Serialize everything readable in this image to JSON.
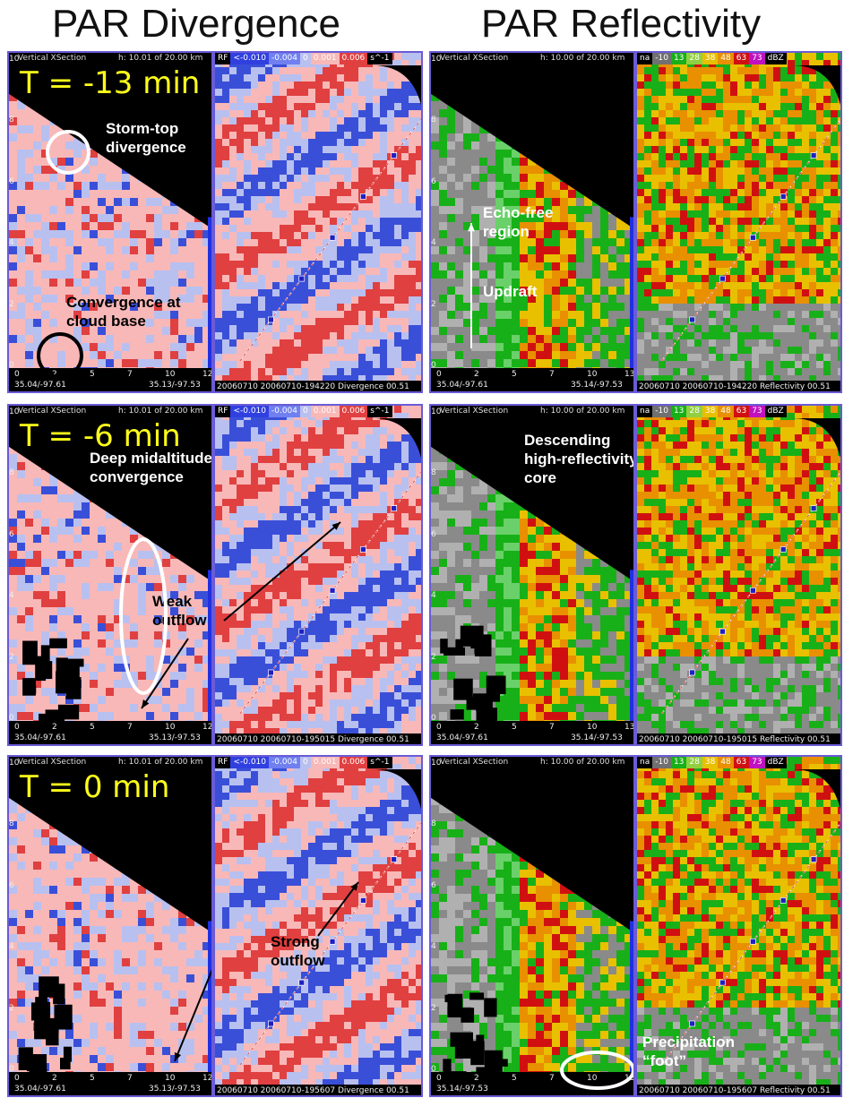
{
  "titles": {
    "divergence": "PAR Divergence",
    "reflectivity": "PAR Reflectivity"
  },
  "rows": [
    {
      "time_label": "T = -13 min",
      "div_xsec_header": {
        "left": "Vertical XSection",
        "right": "h: 10.01 of 20.00 km"
      },
      "refl_xsec_header": {
        "left": "Vertical XSection",
        "right": "h: 10.00 of 20.00 km"
      },
      "div_xsec_footer": {
        "left": "35.04/-97.61",
        "right": "35.13/-97.53"
      },
      "refl_xsec_footer": {
        "left": "35.04/-97.61",
        "right": "35.14/-97.53"
      },
      "div_ppi_footer": "20060710 20060710-194220 Divergence 00.51",
      "refl_ppi_footer": "20060710 20060710-194220 Reflectivity 00.51",
      "div_annotations": [
        "Storm-top divergence",
        "Convergence at cloud base"
      ],
      "refl_annotations": [
        "Echo-free region",
        "Updraft"
      ]
    },
    {
      "time_label": "T = -6 min",
      "div_xsec_header": {
        "left": "Vertical XSection",
        "right": "h: 10.01 of 20.00 km"
      },
      "refl_xsec_header": {
        "left": "Vertical XSection",
        "right": "h: 10.00 of 20.00 km"
      },
      "div_xsec_footer": {
        "left": "35.04/-97.61",
        "right": "35.13/-97.53"
      },
      "refl_xsec_footer": {
        "left": "35.04/-97.61",
        "right": "35.14/-97.53"
      },
      "div_ppi_footer": "20060710 20060710-195015 Divergence 00.51",
      "refl_ppi_footer": "20060710 20060710-195015 Reflectivity 00.51",
      "div_annotations": [
        "Deep midaltitude convergence",
        "Weak outflow"
      ],
      "refl_annotations": [
        "Descending high-reflectivity core"
      ]
    },
    {
      "time_label": "T = 0 min",
      "div_xsec_header": {
        "left": "Vertical XSection",
        "right": "h: 10.01 of 20.00 km"
      },
      "refl_xsec_header": {
        "left": "Vertical XSection",
        "right": "h: 10.00 of 20.00 km"
      },
      "div_xsec_footer": {
        "left": "35.04/-97.61",
        "right": "35.13/-97.53"
      },
      "refl_xsec_footer": {
        "left": "35.14/-97.53",
        "right": ""
      },
      "div_ppi_footer": "20060710 20060710-195607 Divergence 00.51",
      "refl_ppi_footer": "20060710 20060710-195607 Reflectivity 00.51",
      "div_annotations": [
        "Strong outflow"
      ],
      "refl_annotations": [
        "Precipitation “foot”"
      ]
    }
  ],
  "div_legend": {
    "tag": "RF",
    "labels": [
      "<-0.010",
      "-0.004",
      "0",
      "0.001",
      "0.006"
    ],
    "unit": "s^-1"
  },
  "refl_legend": {
    "tag": "na",
    "labels": [
      "-10",
      "13",
      "28",
      "38",
      "48",
      "63",
      "73"
    ],
    "unit": "dBZ"
  },
  "y_ticks": [
    "10",
    "8",
    "6",
    "4",
    "2",
    "0"
  ],
  "div_x_ticks": [
    "0",
    "2",
    "5",
    "7",
    "10",
    "12"
  ],
  "refl_x_ticks": [
    "0",
    "2",
    "5",
    "7",
    "10",
    "13"
  ],
  "colors": {
    "conv_blue": "#3a4fd8",
    "div_red": "#e04040",
    "light_pink": "#f8b8b8",
    "light_blue": "#b8c0f0",
    "refl_green": "#18b018",
    "refl_yellow": "#e8c000",
    "refl_orange": "#e89000",
    "refl_red": "#d01010",
    "refl_magenta": "#c010c0",
    "panel_border": "#6a5bd6"
  }
}
